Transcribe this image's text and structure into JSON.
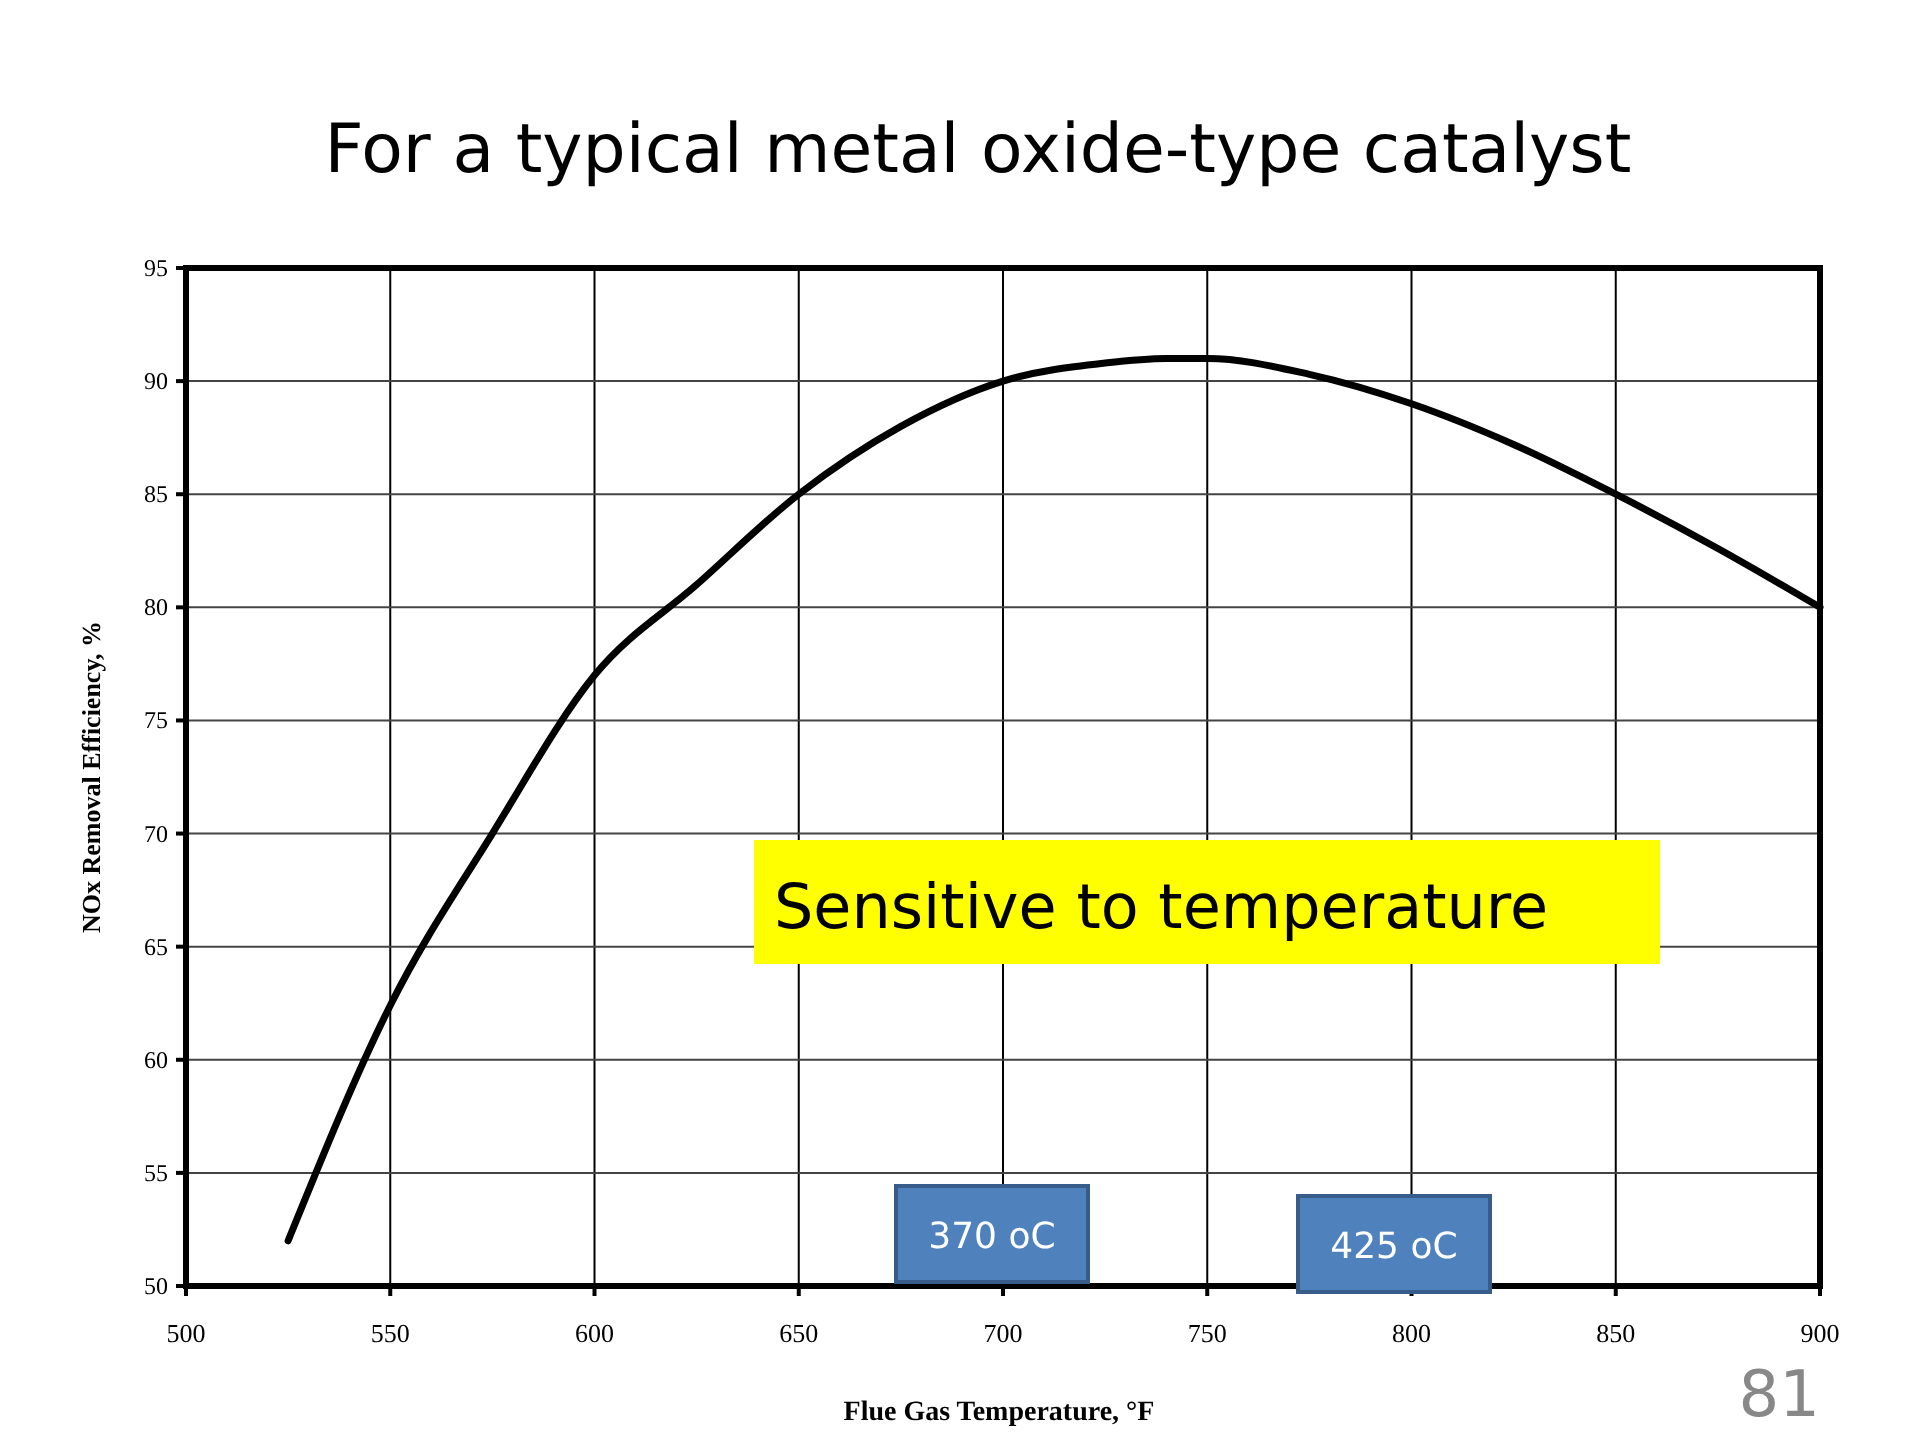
{
  "chart_data": {
    "type": "line",
    "title": "For a typical metal oxide-type catalyst",
    "xlabel": "Flue Gas Temperature, °F",
    "ylabel": "NOx Removal Efficiency, %",
    "x": [
      525,
      550,
      575,
      600,
      625,
      650,
      675,
      700,
      725,
      740,
      750,
      775,
      800,
      825,
      850,
      875,
      900
    ],
    "series": [
      {
        "color": "#000000",
        "values": [
          52,
          62.4,
          70,
          77,
          81,
          85,
          88,
          90,
          90.8,
          91,
          91,
          90.3,
          89,
          87.2,
          85,
          82.6,
          80
        ]
      }
    ],
    "xlim": [
      500,
      900
    ],
    "xticks": [
      500,
      550,
      600,
      650,
      700,
      750,
      800,
      850,
      900
    ],
    "ylim": [
      50,
      95
    ],
    "yticks": [
      50,
      55,
      60,
      65,
      70,
      75,
      80,
      85,
      90,
      95
    ],
    "grid": true,
    "marker": "none",
    "line_style": "solid",
    "annotations": [
      "Sensitive to temperature",
      "370 oC",
      "425 oC",
      "81"
    ]
  }
}
